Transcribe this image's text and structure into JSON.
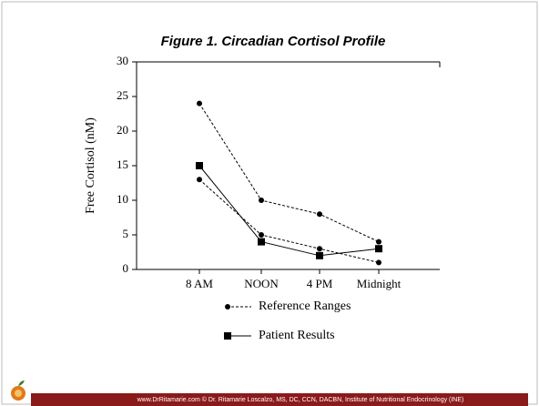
{
  "chart_data": {
    "type": "line",
    "title": "Figure 1.  Circadian Cortisol Profile",
    "y_label": "Free Cortisol (nM)",
    "categories": [
      "8 AM",
      "NOON",
      "4 PM",
      "Midnight"
    ],
    "series": [
      {
        "name": "Reference Ranges",
        "color": "#000000",
        "marker": "circle",
        "dashed": true,
        "values": [
          24,
          10,
          8,
          4
        ]
      },
      {
        "color": "#000000",
        "marker": "circle",
        "dashed": true,
        "values": [
          13,
          5,
          3,
          1
        ]
      },
      {
        "name": "Patient Results",
        "color": "#000000",
        "marker": "square",
        "dashed": false,
        "values": [
          15,
          4,
          2,
          3
        ]
      }
    ],
    "ylim": [
      0,
      30
    ],
    "yticks": [
      0,
      5,
      10,
      15,
      20,
      25,
      30
    ]
  },
  "footer": "www.DrRitamarie.com     © Dr. Ritamarie Loscalzo, MS, DC, CCN, DACBN, Institute of Nutritional Endocrinology (INE)"
}
